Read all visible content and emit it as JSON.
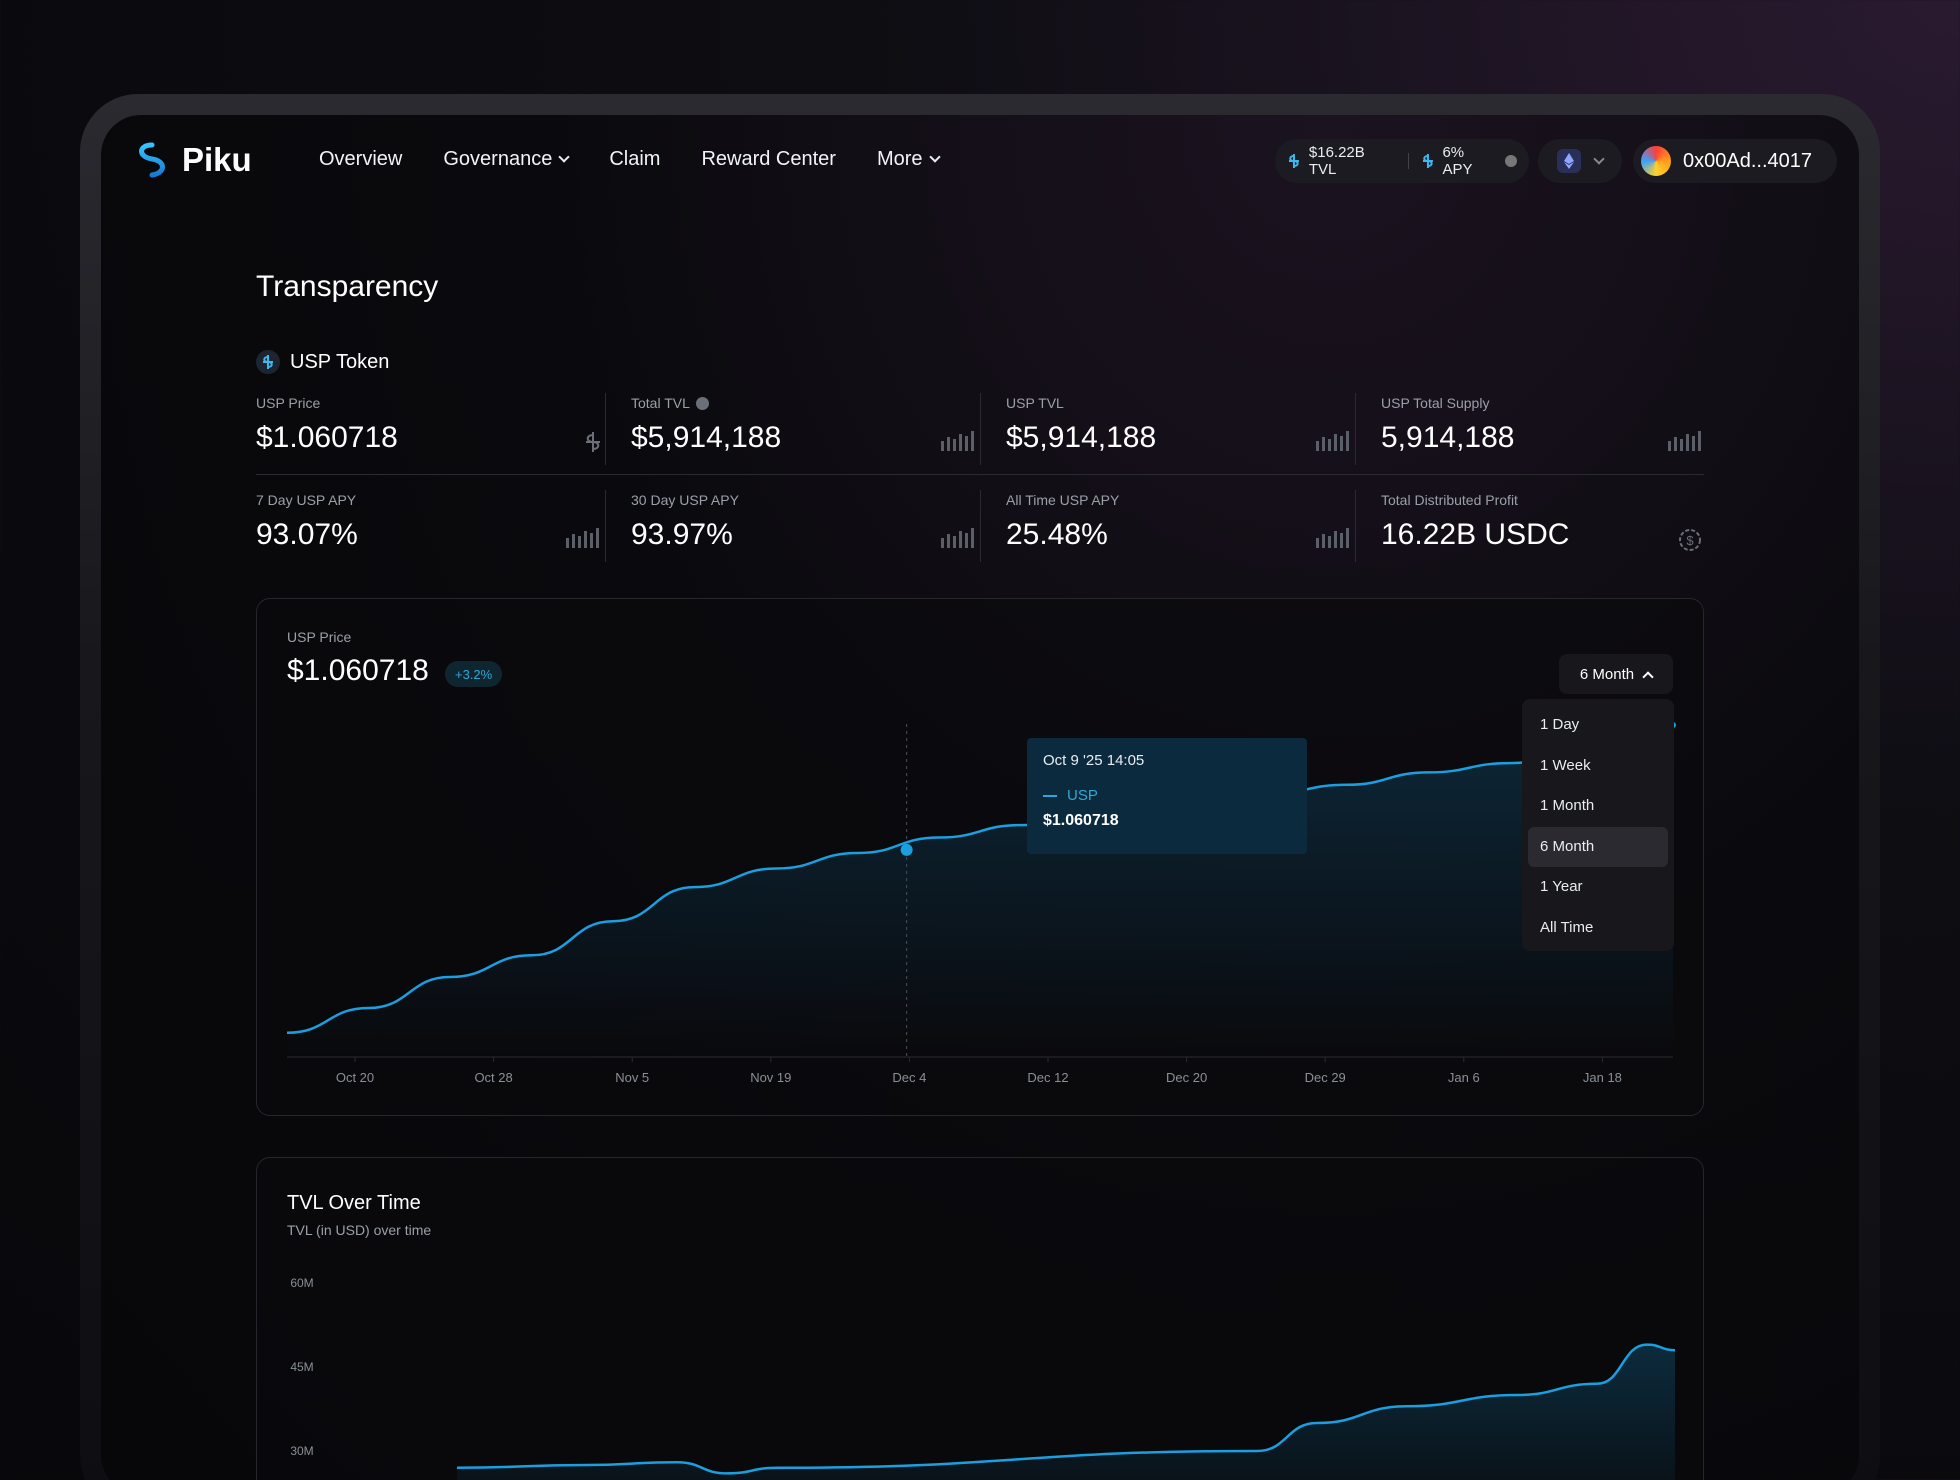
{
  "nav": {
    "brand": "Piku",
    "links": [
      "Overview",
      "Governance",
      "Claim",
      "Reward Center",
      "More"
    ],
    "tvl_stat": "$16.22B TVL",
    "apy_stat": "6% APY",
    "wallet": "0x00Ad...4017"
  },
  "page": {
    "title": "Transparency",
    "token": "USP Token"
  },
  "stats": {
    "usp_price": {
      "label": "USP Price",
      "value": "$1.060718"
    },
    "total_tvl": {
      "label": "Total TVL",
      "value": "$5,914,188"
    },
    "usp_tvl": {
      "label": "USP TVL",
      "value": "$5,914,188"
    },
    "usp_total_supply": {
      "label": "USP Total Supply",
      "value": "5,914,188"
    },
    "apy_7d": {
      "label": "7 Day USP APY",
      "value": "93.07%"
    },
    "apy_30d": {
      "label": "30 Day USP APY",
      "value": "93.97%"
    },
    "apy_all": {
      "label": "All Time USP APY",
      "value": "25.48%"
    },
    "profit": {
      "label": "Total Distributed Profit",
      "value": "16.22B USDC"
    }
  },
  "price_chart": {
    "label": "USP Price",
    "value": "$1.060718",
    "change": "+3.2%",
    "range": "6 Month",
    "range_options": [
      "1 Day",
      "1 Week",
      "1 Month",
      "6 Month",
      "1 Year",
      "All Time"
    ],
    "tooltip": {
      "date": "Oct 9 '25 14:05",
      "series": "USP",
      "value": "$1.060718"
    }
  },
  "tvl_chart": {
    "title": "TVL Over Time",
    "subtitle": "TVL (in USD) over time"
  },
  "chart_data": [
    {
      "type": "line",
      "title": "USP Price",
      "x_ticks": [
        "Oct 20",
        "Oct 28",
        "Nov 5",
        "Nov 19",
        "Dec 4",
        "Dec 12",
        "Dec 20",
        "Dec 29",
        "Jan 6",
        "Jan 18"
      ],
      "series": [
        {
          "name": "USP",
          "values": [
            0.02,
            0.1,
            0.2,
            0.27,
            0.38,
            0.49,
            0.55,
            0.6,
            0.65,
            0.69,
            0.72,
            0.76,
            0.79,
            0.82,
            0.86,
            0.89,
            0.93,
            1.0
          ]
        }
      ],
      "color": "#1a9fe0"
    },
    {
      "type": "area",
      "title": "TVL Over Time",
      "y_ticks": [
        "60M",
        "45M",
        "30M"
      ],
      "series": [
        {
          "values": [
            27,
            27.5,
            28,
            26,
            27,
            30,
            35,
            38,
            40,
            42,
            49,
            48
          ]
        }
      ],
      "color": "#1a9fe0"
    }
  ]
}
